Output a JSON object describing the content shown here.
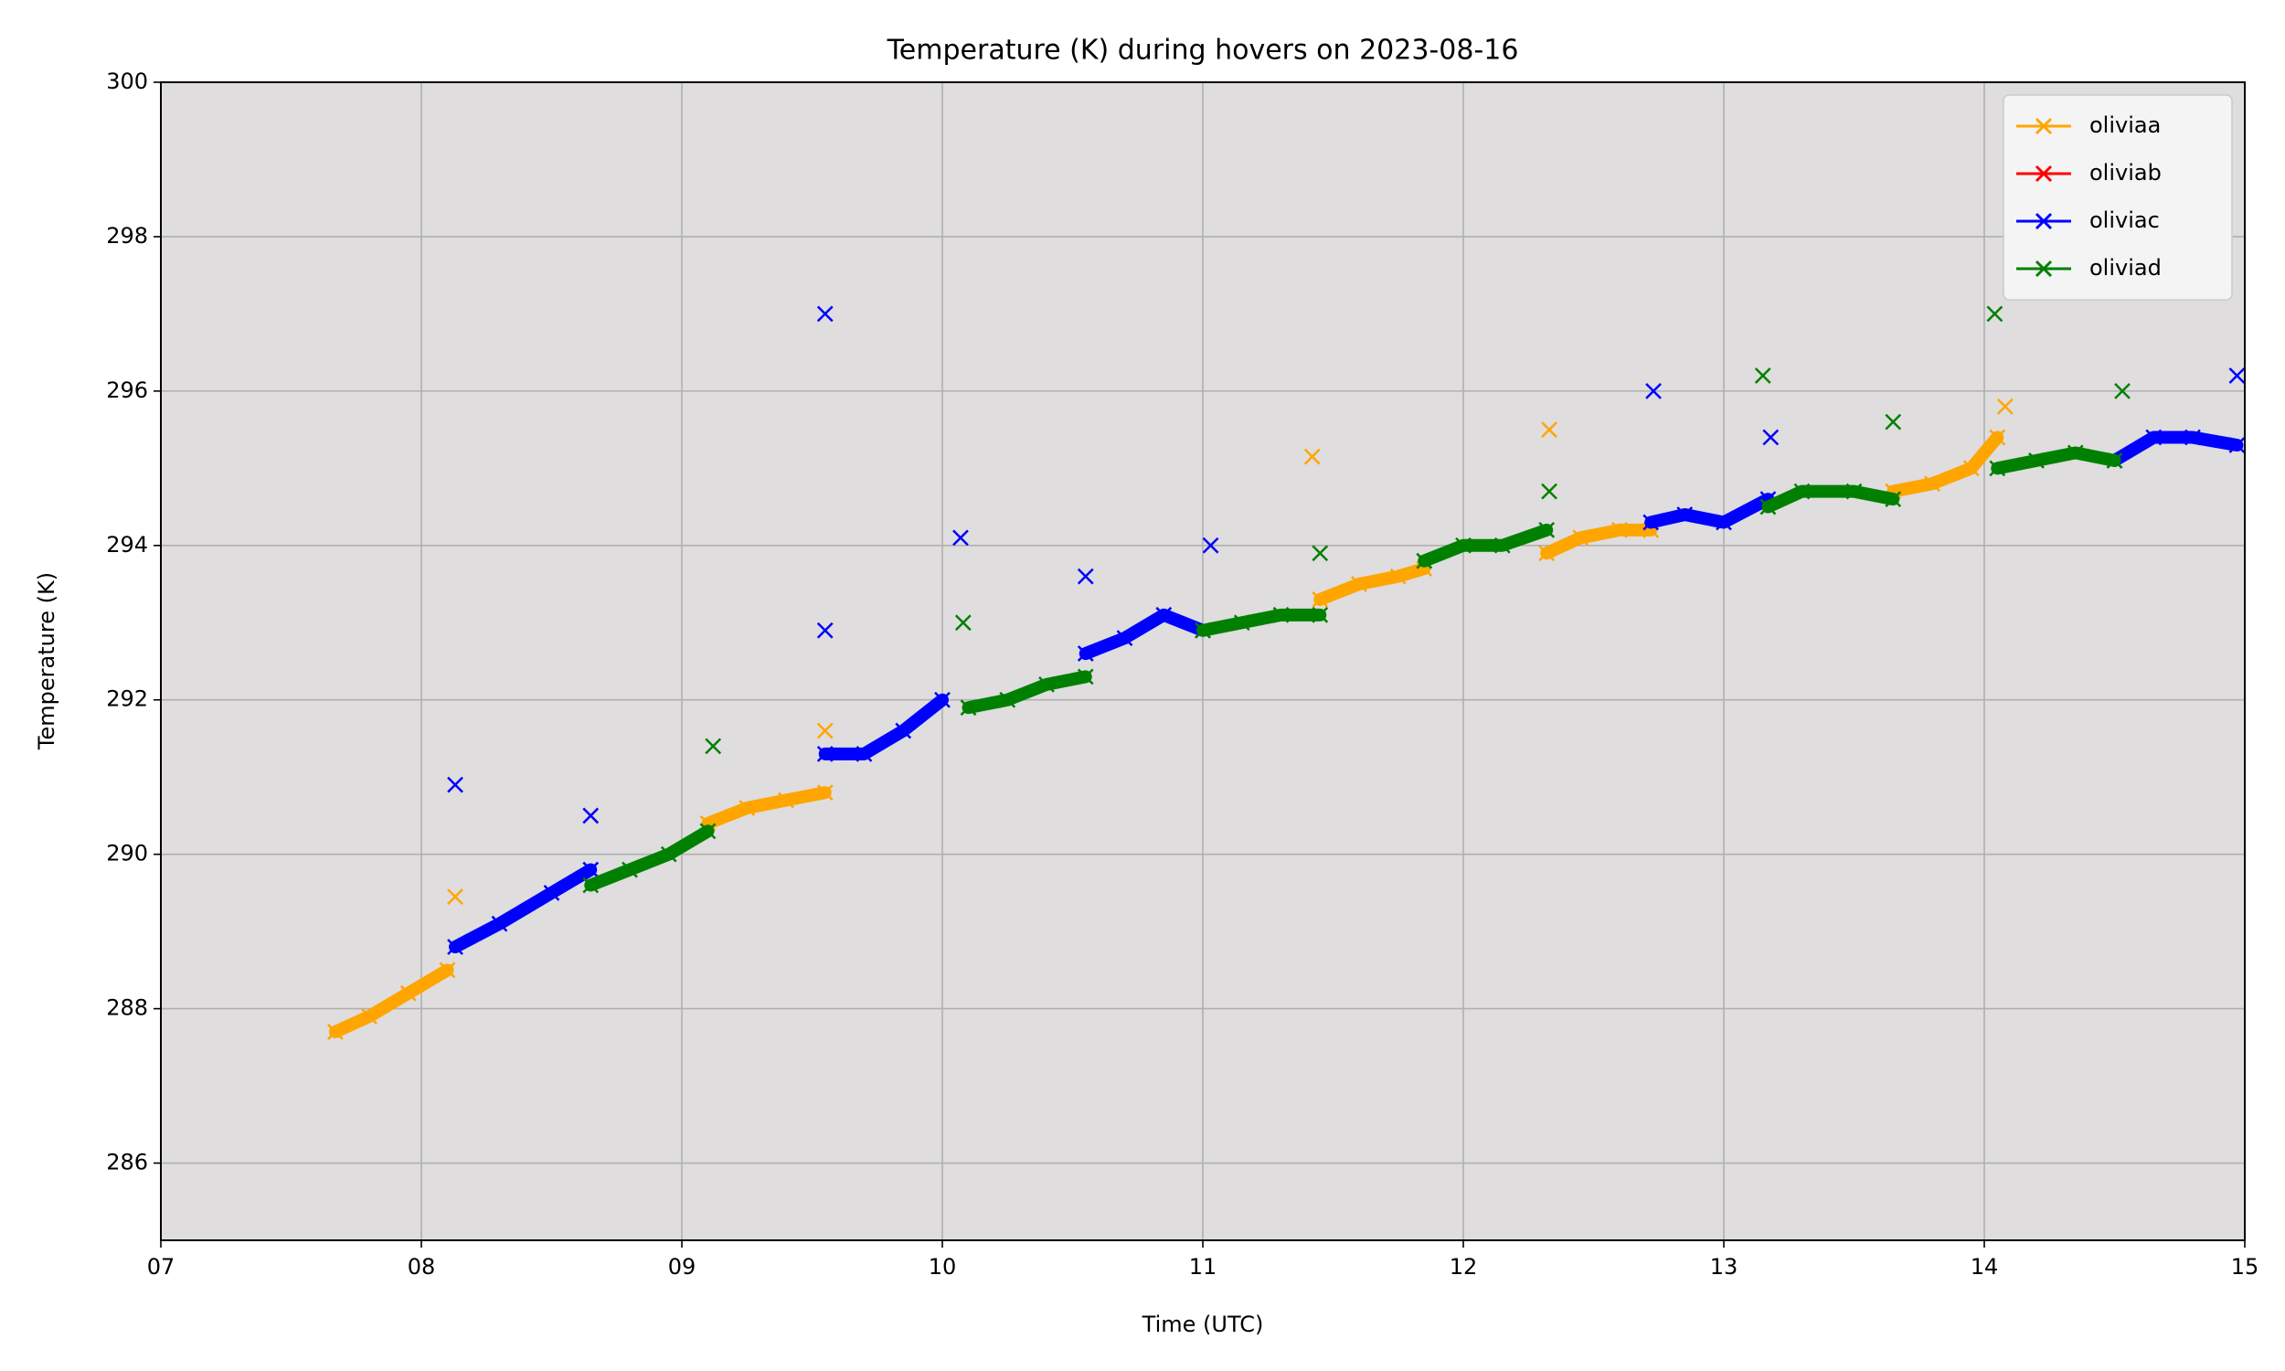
{
  "chart_data": {
    "type": "line",
    "title": "Temperature (K) during hovers on 2023-08-16",
    "x_label": "Time (UTC)",
    "y_label": "Temperature (K)",
    "xlim": [
      7,
      15
    ],
    "xticks": [
      {
        "value": 7,
        "label": "07"
      },
      {
        "value": 8,
        "label": "08"
      },
      {
        "value": 9,
        "label": "09"
      },
      10,
      11,
      12,
      13,
      14,
      15
    ],
    "ylim": [
      285,
      300
    ],
    "yticks": [
      286,
      288,
      290,
      292,
      294,
      296,
      298,
      300
    ],
    "grid": true,
    "legend": "upper right",
    "series": [
      {
        "name": "oliviaa",
        "color": "#ffa500",
        "x": [
          7.67,
          7.8,
          7.95,
          8.1,
          null,
          8.13,
          null,
          9.1,
          9.25,
          9.4,
          9.55,
          null,
          9.55,
          null,
          11.45,
          11.6,
          11.75,
          11.85,
          null,
          11.42,
          null,
          12.32,
          12.45,
          12.6,
          12.72,
          null,
          12.33,
          null,
          13.65,
          13.8,
          13.95,
          14.05,
          null,
          14.08
        ],
        "values": [
          287.7,
          287.9,
          288.2,
          288.5,
          null,
          289.45,
          null,
          290.4,
          290.6,
          290.7,
          290.8,
          null,
          291.6,
          null,
          293.3,
          293.5,
          293.6,
          293.7,
          null,
          295.15,
          null,
          293.9,
          294.1,
          294.2,
          294.2,
          null,
          295.5,
          null,
          294.7,
          294.8,
          295.0,
          295.4,
          null,
          295.8
        ]
      },
      {
        "name": "oliviab",
        "color": "#ff0000",
        "x": [],
        "values": []
      },
      {
        "name": "oliviac",
        "color": "#0000ff",
        "x": [
          8.13,
          null,
          8.13,
          8.3,
          8.5,
          8.65,
          null,
          8.65,
          null,
          9.55,
          null,
          9.55,
          null,
          9.55,
          9.7,
          9.85,
          10.0,
          null,
          10.07,
          null,
          10.55,
          10.7,
          10.85,
          11.0,
          null,
          10.55,
          null,
          11.03,
          null,
          12.72,
          12.85,
          13.0,
          13.17,
          null,
          12.73,
          null,
          13.18,
          null,
          14.5,
          14.65,
          14.8,
          14.97,
          null,
          14.97
        ],
        "values": [
          290.9,
          null,
          288.8,
          289.1,
          289.5,
          289.8,
          null,
          290.5,
          null,
          297.0,
          null,
          292.9,
          null,
          291.3,
          291.3,
          291.6,
          292.0,
          null,
          294.1,
          null,
          292.6,
          292.8,
          293.1,
          292.9,
          null,
          293.6,
          null,
          294.0,
          null,
          294.3,
          294.4,
          294.3,
          294.6,
          null,
          296.0,
          null,
          295.4,
          null,
          295.1,
          295.4,
          295.4,
          295.3,
          null,
          296.2
        ]
      },
      {
        "name": "oliviad",
        "color": "#008000",
        "x": [
          8.65,
          8.8,
          8.95,
          9.1,
          null,
          9.12,
          null,
          10.1,
          10.25,
          10.4,
          10.55,
          null,
          10.08,
          null,
          11.0,
          11.15,
          11.3,
          11.45,
          null,
          11.45,
          null,
          11.85,
          12.0,
          12.15,
          12.32,
          null,
          12.33,
          null,
          13.17,
          13.3,
          13.5,
          13.65,
          null,
          13.15,
          null,
          13.65,
          null,
          14.05,
          14.2,
          14.35,
          14.5,
          null,
          14.04,
          null,
          14.53
        ],
        "values": [
          289.6,
          289.8,
          290.0,
          290.3,
          null,
          291.4,
          null,
          291.9,
          292.0,
          292.2,
          292.3,
          null,
          293.0,
          null,
          292.9,
          293.0,
          293.1,
          293.1,
          null,
          293.9,
          null,
          293.8,
          294.0,
          294.0,
          294.2,
          null,
          294.7,
          null,
          294.5,
          294.7,
          294.7,
          294.6,
          null,
          296.2,
          null,
          295.6,
          null,
          295.0,
          295.1,
          295.2,
          295.1,
          null,
          297.0,
          null,
          296.0
        ]
      }
    ]
  }
}
